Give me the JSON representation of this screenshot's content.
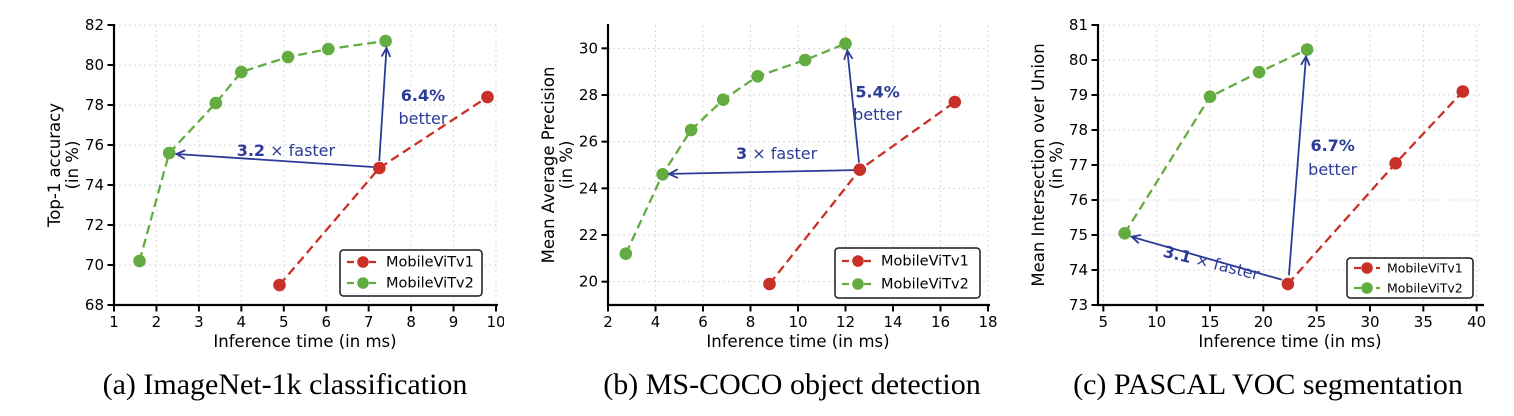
{
  "figure": {
    "description": "Comparison of MobileViTv1 and MobileViTv2 on three tasks: inference time versus accuracy metrics"
  },
  "colors": {
    "mobilevitv1_red": "#c93028",
    "mobilevitv2_green": "#63ac41",
    "annotation_blue": "#2c3b98",
    "grid": "#d8d8d8",
    "axis": "#000000",
    "legend_border": "#1a1a1a",
    "background": "#ffffff"
  },
  "chart_data": [
    {
      "type": "line",
      "caption": "(a) ImageNet-1k classification",
      "xlabel": "Inference time (in ms)",
      "ylabel": [
        "Top-1 accuracy",
        "(in %)"
      ],
      "xlim": [
        1,
        10
      ],
      "ylim": [
        68,
        82
      ],
      "xticks": [
        1,
        2,
        3,
        4,
        5,
        6,
        7,
        8,
        9,
        10
      ],
      "yticks": [
        68,
        70,
        72,
        74,
        76,
        78,
        80,
        82
      ],
      "grid": true,
      "legend_position": "lower-right",
      "series": [
        {
          "name": "MobileViTv1",
          "color": "#c93028",
          "points": [
            [
              4.9,
              69.0
            ],
            [
              7.25,
              74.85
            ],
            [
              9.8,
              78.4
            ]
          ]
        },
        {
          "name": "MobileViTv2",
          "color": "#63ac41",
          "points": [
            [
              1.6,
              70.2
            ],
            [
              2.3,
              75.6
            ],
            [
              3.4,
              78.1
            ],
            [
              4.0,
              79.65
            ],
            [
              5.1,
              80.4
            ],
            [
              6.05,
              80.8
            ],
            [
              7.4,
              81.2
            ]
          ]
        }
      ],
      "annotations": {
        "speedup": {
          "text": "3.2 × faster",
          "bold_part": "3.2",
          "arrow_from": [
            7.1,
            74.9
          ],
          "arrow_to": [
            2.47,
            75.55
          ],
          "label_x": 5.05,
          "label_y": 75.45,
          "rotate": 0
        },
        "improvement": {
          "line1": "6.4%",
          "line2": "better",
          "arrow_from": [
            7.25,
            75.2
          ],
          "arrow_to": [
            7.42,
            80.85
          ],
          "label_x": 8.28,
          "label_y1": 78.2,
          "label_y2": 77.05
        }
      }
    },
    {
      "type": "line",
      "caption": "(b) MS-COCO object detection",
      "xlabel": "Inference time (in ms)",
      "ylabel": [
        "Mean Average Precision",
        "(in %)"
      ],
      "xlim": [
        2,
        18
      ],
      "ylim": [
        19,
        31
      ],
      "xticks": [
        2,
        4,
        6,
        8,
        10,
        12,
        14,
        16,
        18
      ],
      "yticks": [
        20,
        22,
        24,
        26,
        28,
        30
      ],
      "grid": true,
      "legend_position": "lower-right",
      "series": [
        {
          "name": "MobileViTv1",
          "color": "#c93028",
          "points": [
            [
              8.8,
              19.9
            ],
            [
              12.6,
              24.8
            ],
            [
              16.6,
              27.7
            ]
          ]
        },
        {
          "name": "MobileViTv2",
          "color": "#63ac41",
          "points": [
            [
              2.75,
              21.2
            ],
            [
              4.3,
              24.6
            ],
            [
              5.5,
              26.5
            ],
            [
              6.85,
              27.8
            ],
            [
              8.3,
              28.8
            ],
            [
              10.3,
              29.5
            ],
            [
              12.0,
              30.2
            ]
          ]
        }
      ],
      "annotations": {
        "speedup": {
          "text": "3 × faster",
          "bold_part": "3",
          "arrow_from": [
            12.35,
            24.78
          ],
          "arrow_to": [
            4.57,
            24.62
          ],
          "label_x": 9.1,
          "label_y": 25.25,
          "rotate": 0
        },
        "improvement": {
          "line1": "5.4%",
          "line2": "better",
          "arrow_from": [
            12.57,
            25.1
          ],
          "arrow_to": [
            12.08,
            29.9
          ],
          "label_x": 13.35,
          "label_y1": 27.9,
          "label_y2": 26.92
        }
      }
    },
    {
      "type": "line",
      "caption": "(c) PASCAL VOC segmentation",
      "xlabel": "Inference time (in ms)",
      "ylabel": [
        "Mean Intersection over Union",
        "(in %)"
      ],
      "xlim": [
        4.5,
        40.5
      ],
      "ylim": [
        73,
        81
      ],
      "xticks": [
        5,
        10,
        15,
        20,
        25,
        30,
        35,
        40
      ],
      "yticks": [
        73,
        74,
        75,
        76,
        77,
        78,
        79,
        80,
        81
      ],
      "grid": true,
      "legend_position": "lower-right",
      "series": [
        {
          "name": "MobileViTv1",
          "color": "#c93028",
          "points": [
            [
              22.3,
              73.6
            ],
            [
              32.4,
              77.05
            ],
            [
              38.7,
              79.1
            ]
          ]
        },
        {
          "name": "MobileViTv2",
          "color": "#63ac41",
          "points": [
            [
              7.0,
              75.05
            ],
            [
              15.0,
              78.95
            ],
            [
              19.6,
              79.65
            ],
            [
              24.1,
              80.3
            ]
          ]
        }
      ],
      "annotations": {
        "speedup": {
          "text": "3.1 × faster",
          "bold_part": "3.1",
          "arrow_from": [
            21.75,
            73.72
          ],
          "arrow_to": [
            7.65,
            74.95
          ],
          "label_x": 15.0,
          "label_y": 74.05,
          "rotate": 14
        },
        "improvement": {
          "line1": "6.7%",
          "line2": "better",
          "arrow_from": [
            22.4,
            73.85
          ],
          "arrow_to": [
            24.0,
            80.1
          ],
          "label_x": 26.5,
          "label_y1": 77.4,
          "label_y2": 76.72
        }
      }
    }
  ]
}
